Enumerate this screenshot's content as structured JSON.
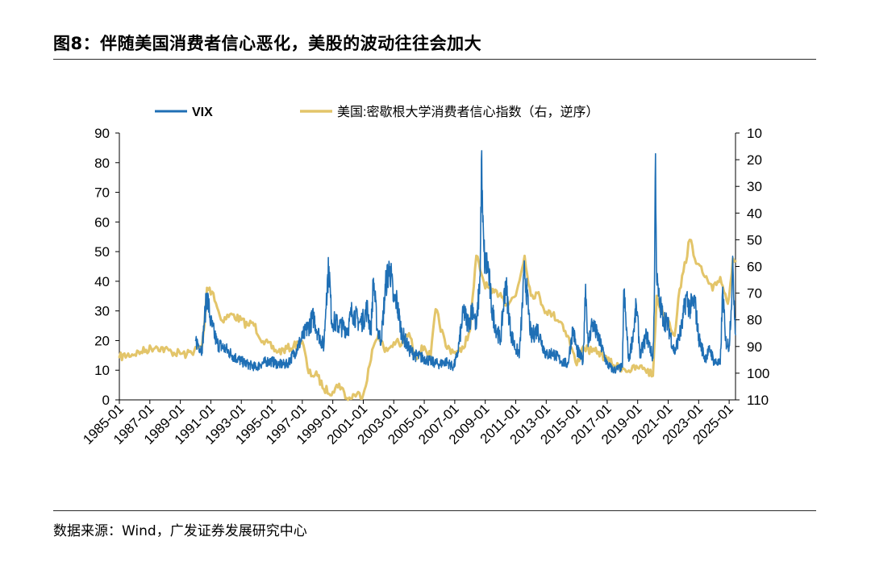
{
  "figure": {
    "title": "图8：伴随美国消费者信心恶化，美股的波动往往会加大",
    "source": "数据来源：Wind，广发证券发展研究中心"
  },
  "chart_data": {
    "type": "line",
    "x_tick_labels": [
      "1985-01",
      "1987-01",
      "1989-01",
      "1991-01",
      "1993-01",
      "1995-01",
      "1997-01",
      "1999-01",
      "2001-01",
      "2003-01",
      "2005-01",
      "2007-01",
      "2009-01",
      "2011-01",
      "2013-01",
      "2015-01",
      "2017-01",
      "2019-01",
      "2021-01",
      "2023-01",
      "2025-01"
    ],
    "xlim": [
      "1985-01",
      "2025-06"
    ],
    "y_left": {
      "ylim": [
        0,
        90
      ],
      "ticks": [
        0,
        10,
        20,
        30,
        40,
        50,
        60,
        70,
        80,
        90
      ]
    },
    "y_right": {
      "ylim": [
        10,
        110
      ],
      "ticks": [
        10,
        20,
        30,
        40,
        50,
        60,
        70,
        80,
        90,
        100,
        110
      ],
      "inverted": true
    },
    "legend_position": "top",
    "series": [
      {
        "name": "VIX",
        "axis": "left",
        "color": "#1f6fb5",
        "x": [
          "1990-01",
          "1990-06",
          "1990-08",
          "1990-10",
          "1991-01",
          "1991-06",
          "1992-01",
          "1992-06",
          "1993-01",
          "1993-06",
          "1994-01",
          "1994-04",
          "1994-09",
          "1995-01",
          "1995-06",
          "1996-01",
          "1996-07",
          "1997-01",
          "1997-10",
          "1998-01",
          "1998-06",
          "1998-08",
          "1998-10",
          "1998-12",
          "1999-06",
          "2000-01",
          "2000-04",
          "2000-10",
          "2001-01",
          "2001-04",
          "2001-07",
          "2001-09",
          "2001-12",
          "2002-03",
          "2002-07",
          "2002-10",
          "2003-01",
          "2003-03",
          "2003-07",
          "2004-01",
          "2004-06",
          "2005-01",
          "2005-06",
          "2006-01",
          "2006-06",
          "2006-12",
          "2007-03",
          "2007-08",
          "2007-11",
          "2008-01",
          "2008-03",
          "2008-06",
          "2008-09",
          "2008-10",
          "2008-11",
          "2008-12",
          "2009-01",
          "2009-03",
          "2009-06",
          "2009-09",
          "2010-01",
          "2010-05",
          "2010-09",
          "2011-01",
          "2011-04",
          "2011-08",
          "2011-10",
          "2012-01",
          "2012-06",
          "2013-01",
          "2013-06",
          "2014-01",
          "2014-06",
          "2014-10",
          "2015-01",
          "2015-06",
          "2015-08",
          "2015-10",
          "2016-01",
          "2016-02",
          "2016-06",
          "2017-01",
          "2017-06",
          "2018-01",
          "2018-02",
          "2018-06",
          "2018-10",
          "2018-12",
          "2019-03",
          "2019-08",
          "2020-01",
          "2020-02",
          "2020-03",
          "2020-04",
          "2020-06",
          "2020-09",
          "2021-01",
          "2021-06",
          "2021-12",
          "2022-03",
          "2022-06",
          "2022-10",
          "2023-01",
          "2023-06",
          "2023-10",
          "2024-01",
          "2024-06",
          "2024-08",
          "2024-10",
          "2025-01",
          "2025-04",
          "2025-06"
        ],
        "values": [
          20,
          17,
          27,
          36,
          26,
          19,
          17,
          15,
          13,
          12,
          11,
          12,
          13,
          13,
          12,
          12,
          16,
          21,
          28,
          23,
          18,
          36,
          45,
          27,
          25,
          24,
          30,
          26,
          27,
          31,
          23,
          41,
          24,
          20,
          40,
          45,
          33,
          34,
          23,
          17,
          15,
          14,
          13,
          12,
          13,
          11,
          15,
          30,
          26,
          27,
          32,
          24,
          42,
          81,
          60,
          50,
          45,
          46,
          31,
          25,
          20,
          40,
          23,
          17,
          16,
          44,
          35,
          21,
          24,
          15,
          16,
          13,
          12,
          24,
          17,
          13,
          39,
          18,
          26,
          25,
          21,
          12,
          10,
          11,
          37,
          13,
          24,
          32,
          15,
          22,
          14,
          30,
          83,
          40,
          33,
          28,
          25,
          16,
          25,
          35,
          31,
          33,
          21,
          14,
          17,
          13,
          12,
          38,
          20,
          18,
          45,
          22
        ],
        "style": "jagged"
      },
      {
        "name": "美国:密歇根大学消费者信心指数（右，逆序）",
        "axis": "right",
        "color": "#e3c56a",
        "x": [
          "1985-01",
          "1986-06",
          "1987-06",
          "1988-06",
          "1989-06",
          "1990-06",
          "1990-08",
          "1990-10",
          "1991-03",
          "1991-09",
          "1992-06",
          "1993-06",
          "1993-10",
          "1994-06",
          "1995-06",
          "1996-06",
          "1997-01",
          "1997-06",
          "1998-01",
          "1998-06",
          "1999-01",
          "1999-06",
          "2000-01",
          "2000-06",
          "2001-01",
          "2001-06",
          "2001-09",
          "2002-01",
          "2002-06",
          "2003-03",
          "2003-06",
          "2004-01",
          "2004-06",
          "2005-01",
          "2005-06",
          "2005-10",
          "2006-06",
          "2007-01",
          "2007-06",
          "2008-01",
          "2008-06",
          "2008-12",
          "2009-06",
          "2010-01",
          "2010-06",
          "2011-01",
          "2011-08",
          "2012-01",
          "2012-06",
          "2013-01",
          "2013-06",
          "2014-01",
          "2014-06",
          "2015-01",
          "2015-06",
          "2016-01",
          "2016-06",
          "2017-01",
          "2017-06",
          "2018-01",
          "2018-06",
          "2019-01",
          "2019-06",
          "2020-01",
          "2020-04",
          "2020-06",
          "2020-09",
          "2021-01",
          "2021-06",
          "2021-09",
          "2022-01",
          "2022-06",
          "2022-12",
          "2023-06",
          "2023-12",
          "2024-06",
          "2024-12",
          "2025-04",
          "2025-06"
        ],
        "values": [
          94,
          92,
          90,
          92,
          93,
          90,
          82,
          68,
          70,
          80,
          78,
          82,
          81,
          88,
          92,
          90,
          88,
          100,
          101,
          106,
          107,
          104,
          110,
          108,
          108,
          97,
          90,
          85,
          92,
          88,
          90,
          85,
          94,
          90,
          94,
          76,
          90,
          92,
          92,
          84,
          56,
          66,
          70,
          70,
          74,
          71,
          56,
          71,
          70,
          77,
          78,
          81,
          86,
          97,
          90,
          92,
          92,
          95,
          97,
          98,
          99,
          98,
          98,
          101,
          71,
          75,
          78,
          80,
          86,
          72,
          62,
          50,
          59,
          64,
          69,
          64,
          74,
          57,
          58
        ],
        "style": "smooth"
      }
    ]
  }
}
